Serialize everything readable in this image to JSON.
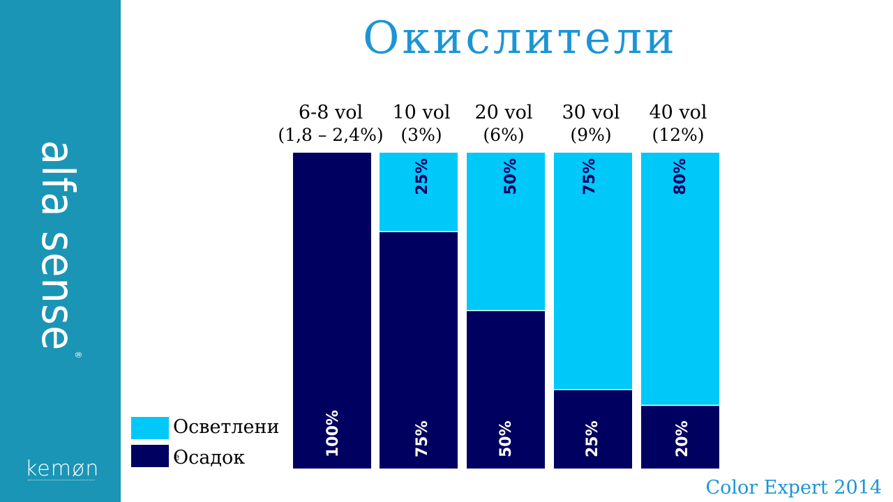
{
  "slide": {
    "title": "Окислители",
    "brand_vertical": "alfa sense",
    "brand_mark": "®",
    "logo": "kemøn",
    "footer": "Color Expert 2014"
  },
  "legend": [
    {
      "label": "Осветлени",
      "color": "#00c8f8"
    },
    {
      "label": "Осадок",
      "color": "#000060"
    }
  ],
  "legend_extra_mark": "e",
  "colors": {
    "sidebar": "#1b95b5",
    "title": "#1b95d5",
    "light": "#00c8f8",
    "dark": "#000060"
  },
  "chart_data": {
    "type": "bar",
    "stacked": true,
    "categories": [
      "6-8 vol",
      "10 vol",
      "20 vol",
      "30 vol",
      "40 vol"
    ],
    "category_sublabels": [
      "(1,8 – 2,4%)",
      "(3%)",
      "(6%)",
      "(9%)",
      "(12%)"
    ],
    "series": [
      {
        "name": "Осадок",
        "values": [
          100,
          75,
          50,
          25,
          20
        ],
        "labels": [
          "100%",
          "75%",
          "50%",
          "25%",
          "20%"
        ]
      },
      {
        "name": "Осветлени",
        "values": [
          0,
          25,
          50,
          75,
          80
        ],
        "labels": [
          "",
          "25%",
          "50%",
          "75%",
          "80%"
        ]
      }
    ],
    "ylim": [
      0,
      100
    ]
  }
}
